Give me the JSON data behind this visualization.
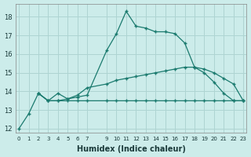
{
  "xlabel": "Humidex (Indice chaleur)",
  "background_color": "#ccecea",
  "grid_color": "#aed4d2",
  "line_color": "#1a7a6e",
  "xlim": [
    -0.3,
    23.3
  ],
  "ylim": [
    11.8,
    18.7
  ],
  "yticks": [
    12,
    13,
    14,
    15,
    16,
    17,
    18
  ],
  "xticks": [
    0,
    1,
    2,
    3,
    4,
    5,
    6,
    7,
    9,
    10,
    11,
    12,
    13,
    14,
    15,
    16,
    17,
    18,
    19,
    20,
    21,
    22,
    23
  ],
  "s1_x": [
    0,
    1,
    2,
    3,
    4,
    5,
    6,
    7,
    9,
    10,
    11,
    12,
    13,
    14,
    15,
    16,
    17,
    18,
    19,
    20,
    21,
    22,
    23
  ],
  "s1_y": [
    12.0,
    12.8,
    13.9,
    13.5,
    13.5,
    13.6,
    13.7,
    13.8,
    16.2,
    17.1,
    18.3,
    17.5,
    17.4,
    17.2,
    17.2,
    17.1,
    16.6,
    15.3,
    15.0,
    14.5,
    13.9,
    13.5,
    13.5
  ],
  "s2_x": [
    2,
    3,
    4,
    5,
    6,
    7,
    9,
    10,
    11,
    12,
    13,
    14,
    15,
    16,
    17,
    18,
    19,
    20,
    21,
    22,
    23
  ],
  "s2_y": [
    13.9,
    13.5,
    13.9,
    13.6,
    13.8,
    14.2,
    14.4,
    14.6,
    14.7,
    14.8,
    14.9,
    15.0,
    15.1,
    15.2,
    15.3,
    15.3,
    15.2,
    15.0,
    14.7,
    14.4,
    13.5
  ],
  "s3_x": [
    2,
    3,
    4,
    5,
    6,
    7,
    9,
    10,
    11,
    12,
    13,
    14,
    15,
    16,
    17,
    18,
    19,
    20,
    21,
    22,
    23
  ],
  "s3_y": [
    13.9,
    13.5,
    13.5,
    13.5,
    13.5,
    13.5,
    13.5,
    13.5,
    13.5,
    13.5,
    13.5,
    13.5,
    13.5,
    13.5,
    13.5,
    13.5,
    13.5,
    13.5,
    13.5,
    13.5,
    13.5
  ]
}
